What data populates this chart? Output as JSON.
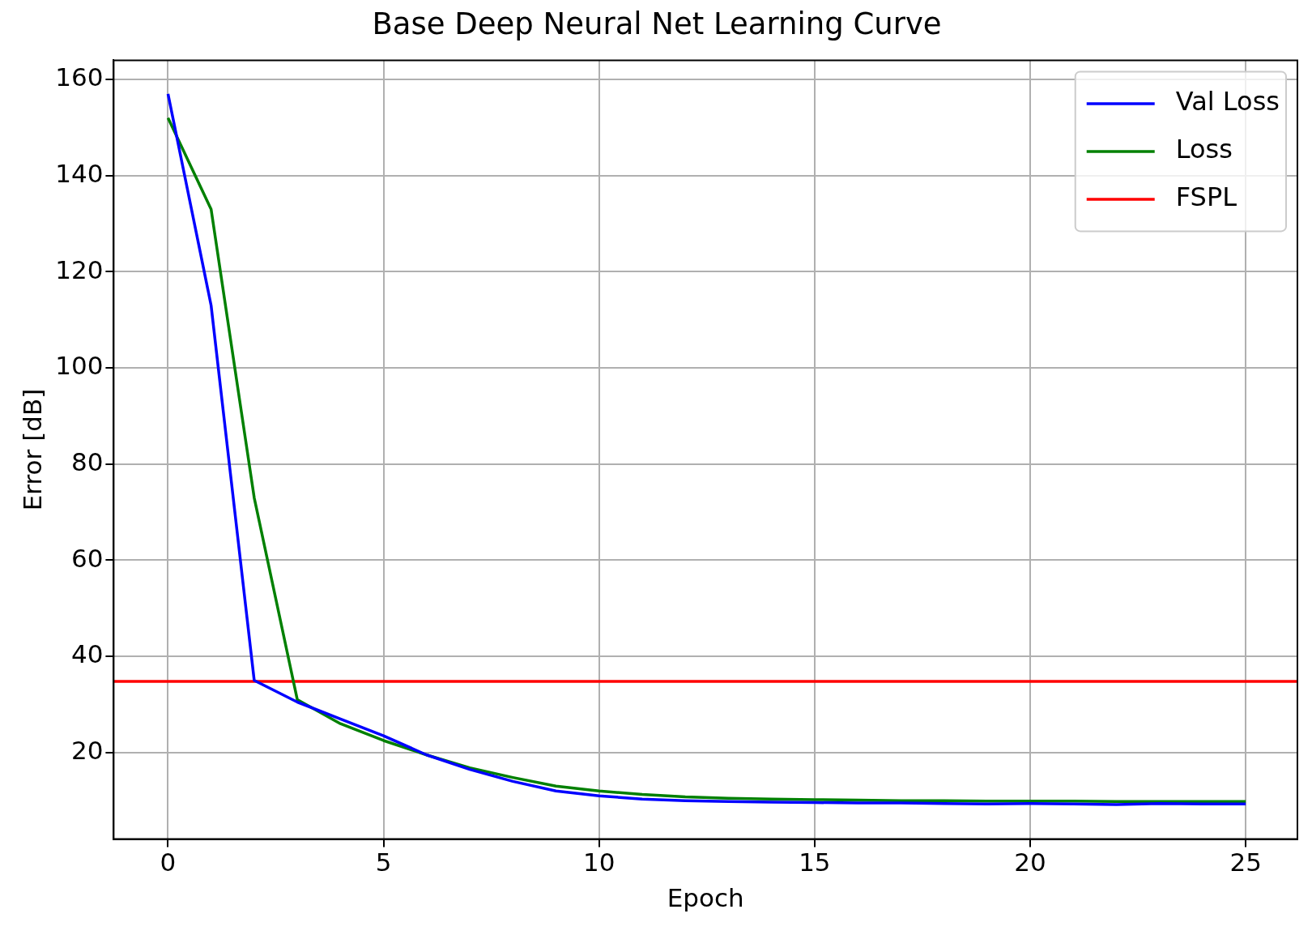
{
  "chart_data": {
    "type": "line",
    "title": "Base Deep Neural Net Learning Curve",
    "xlabel": "Epoch",
    "ylabel": "Error [dB]",
    "x": [
      0,
      1,
      2,
      3,
      4,
      5,
      6,
      7,
      8,
      9,
      10,
      11,
      12,
      13,
      14,
      15,
      16,
      17,
      18,
      19,
      20,
      21,
      22,
      23,
      24,
      25
    ],
    "series": [
      {
        "name": "Val Loss",
        "color": "#0000ff",
        "values": [
          157,
          113,
          35,
          30.5,
          27,
          23.5,
          19.5,
          16.5,
          14,
          12,
          11,
          10.3,
          10,
          9.8,
          9.7,
          9.6,
          9.5,
          9.5,
          9.4,
          9.3,
          9.4,
          9.3,
          9.2,
          9.4,
          9.3,
          9.3
        ]
      },
      {
        "name": "Loss",
        "color": "#008000",
        "values": [
          152,
          133,
          73,
          31,
          26,
          22.5,
          19.5,
          16.8,
          14.8,
          13,
          12,
          11.3,
          10.8,
          10.5,
          10.3,
          10.2,
          10.1,
          10,
          10,
          9.9,
          9.9,
          9.9,
          9.8,
          9.8,
          9.8,
          9.8
        ]
      }
    ],
    "ref_lines": [
      {
        "axis": "y",
        "value": 34.8,
        "label": "FSPL",
        "color": "#ff0000"
      }
    ],
    "xlim": [
      -1.26,
      26.2
    ],
    "xticks": [
      0,
      5,
      10,
      15,
      20,
      25
    ],
    "ylim": [
      2,
      164
    ],
    "yticks": [
      20,
      40,
      60,
      80,
      100,
      120,
      140,
      160
    ],
    "grid": true,
    "legend": "top right",
    "marker": "none",
    "line_style": "solid"
  }
}
